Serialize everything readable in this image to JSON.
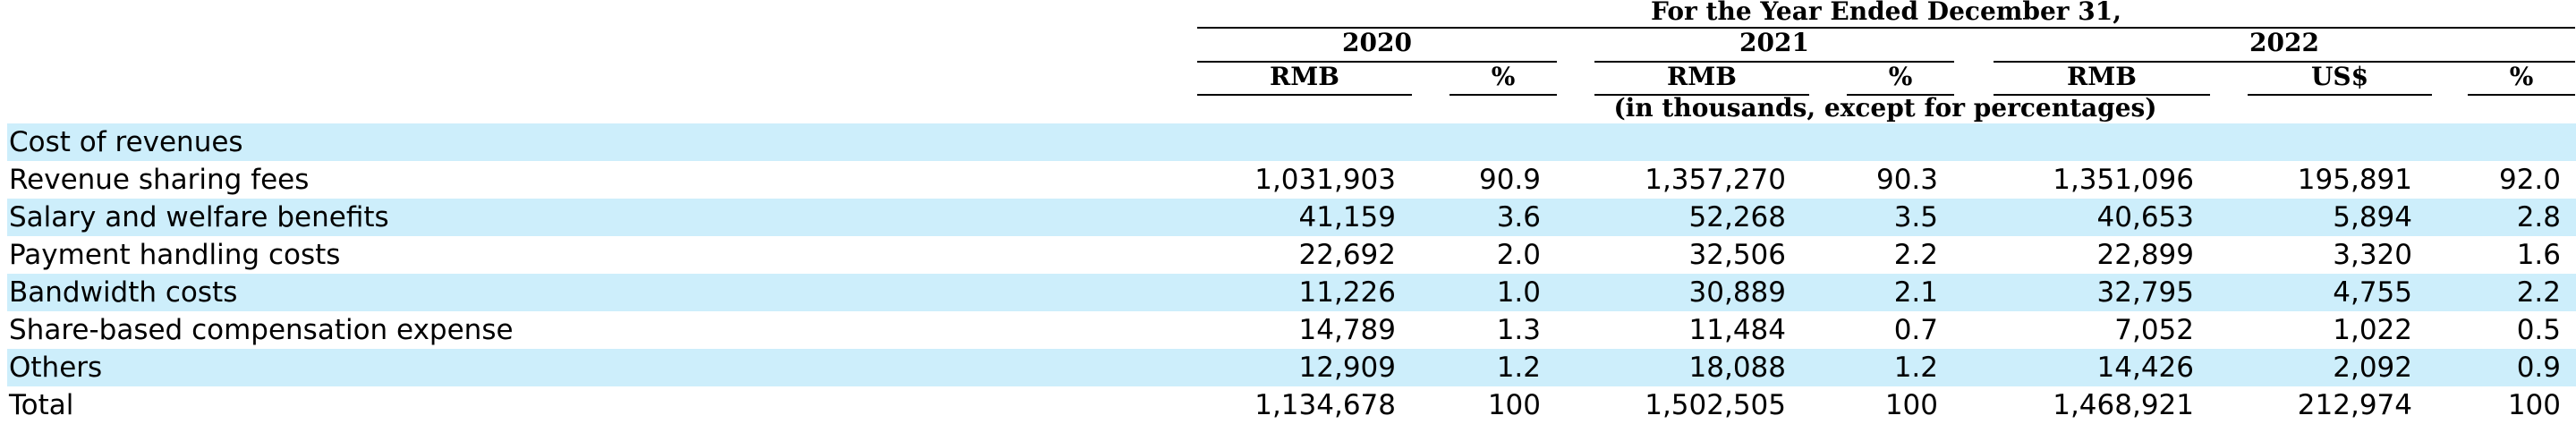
{
  "header": {
    "period_title": "For the Year Ended December 31,",
    "years": [
      "2020",
      "2021",
      "2022"
    ],
    "col_2020_rmb": "RMB",
    "col_2020_pct": "%",
    "col_2021_rmb": "RMB",
    "col_2021_pct": "%",
    "col_2022_rmb": "RMB",
    "col_2022_usd": "US$",
    "col_2022_pct": "%",
    "units_note": "(in thousands, except for percentages)"
  },
  "rows": [
    {
      "label": "Cost of revenues",
      "values": [
        "",
        "",
        "",
        "",
        "",
        "",
        ""
      ]
    },
    {
      "label": "Revenue sharing fees",
      "values": [
        "1,031,903",
        "90.9",
        "1,357,270",
        "90.3",
        "1,351,096",
        "195,891",
        "92.0"
      ]
    },
    {
      "label": "Salary and welfare benefits",
      "values": [
        "41,159",
        "3.6",
        "52,268",
        "3.5",
        "40,653",
        "5,894",
        "2.8"
      ]
    },
    {
      "label": "Payment handling costs",
      "values": [
        "22,692",
        "2.0",
        "32,506",
        "2.2",
        "22,899",
        "3,320",
        "1.6"
      ]
    },
    {
      "label": "Bandwidth costs",
      "values": [
        "11,226",
        "1.0",
        "30,889",
        "2.1",
        "32,795",
        "4,755",
        "2.2"
      ]
    },
    {
      "label": "Share-based compensation expense",
      "values": [
        "14,789",
        "1.3",
        "11,484",
        "0.7",
        "7,052",
        "1,022",
        "0.5"
      ]
    },
    {
      "label": "Others",
      "values": [
        "12,909",
        "1.2",
        "18,088",
        "1.2",
        "14,426",
        "2,092",
        "0.9"
      ]
    },
    {
      "label": "Total",
      "values": [
        "1,134,678",
        "100",
        "1,502,505",
        "100",
        "1,468,921",
        "212,974",
        "100"
      ]
    }
  ],
  "colors": {
    "row_shade": "#cdeefb",
    "text": "#000000",
    "rule": "#000000"
  }
}
